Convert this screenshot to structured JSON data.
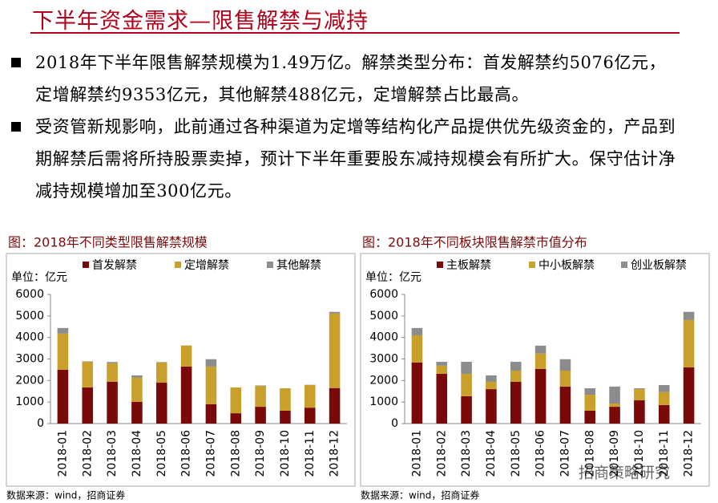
{
  "title": "下半年资金需求—限售解禁与减持",
  "bullets": [
    "2018年下半年限售解禁规模为1.49万亿。解禁类型分布：首发解禁约5076亿元，定增解禁约9353亿元，其他解禁488亿元，定增解禁占比最高。",
    "受资管新规影响，此前通过各种渠道为定增等结构化产品提供优先级资金的，产品到期解禁后需将所持股票卖掉，预计下半年重要股东减持规模会有所扩大。保守估计净减持规模增加至300亿元。"
  ],
  "watermark": "招商策略研究",
  "chart_data": [
    {
      "type": "stacked-bar",
      "title": "图：2018年不同类型限售解禁规模",
      "unit_label": "单位：亿元",
      "source": "数据来源：wind，招商证券",
      "categories": [
        "2018-01",
        "2018-02",
        "2018-03",
        "2018-04",
        "2018-05",
        "2018-06",
        "2018-07",
        "2018-08",
        "2018-09",
        "2018-10",
        "2018-11",
        "2018-12"
      ],
      "series": [
        {
          "name": "首发解禁",
          "color": "#7a0a0a",
          "values": [
            2500,
            1680,
            1940,
            1010,
            1900,
            2650,
            900,
            480,
            780,
            600,
            740,
            1650
          ]
        },
        {
          "name": "定增解禁",
          "color": "#c9a02c",
          "values": [
            1680,
            1190,
            860,
            1120,
            940,
            970,
            1750,
            1200,
            970,
            1040,
            1050,
            3460
          ]
        },
        {
          "name": "其他解禁",
          "color": "#8c8c8c",
          "values": [
            260,
            20,
            60,
            110,
            20,
            10,
            340,
            0,
            20,
            0,
            10,
            80
          ]
        }
      ],
      "ylim": [
        0,
        6000
      ],
      "yticks": [
        0,
        1000,
        2000,
        3000,
        4000,
        5000,
        6000
      ],
      "legend": "top"
    },
    {
      "type": "stacked-bar",
      "title": "图：2018年不同板块限售解禁市值分布",
      "unit_label": "单位：亿元",
      "source": "数据来源：wind，招商证券",
      "categories": [
        "2018-01",
        "2018-02",
        "2018-03",
        "2018-04",
        "2018-05",
        "2018-06",
        "2018-07",
        "2018-08",
        "2018-09",
        "2018-10",
        "2018-11",
        "2018-12"
      ],
      "series": [
        {
          "name": "主板解禁",
          "color": "#7a0a0a",
          "values": [
            2840,
            2310,
            1270,
            1600,
            1940,
            2540,
            1720,
            600,
            780,
            1080,
            860,
            2610
          ]
        },
        {
          "name": "中小板解禁",
          "color": "#c9a02c",
          "values": [
            1260,
            380,
            1040,
            340,
            520,
            710,
            740,
            740,
            150,
            520,
            600,
            2200
          ]
        },
        {
          "name": "创业板解禁",
          "color": "#8c8c8c",
          "values": [
            340,
            180,
            560,
            300,
            410,
            370,
            530,
            300,
            790,
            40,
            330,
            380
          ]
        }
      ],
      "ylim": [
        0,
        6000
      ],
      "yticks": [
        0,
        1000,
        2000,
        3000,
        4000,
        5000,
        6000
      ],
      "legend": "top"
    }
  ]
}
